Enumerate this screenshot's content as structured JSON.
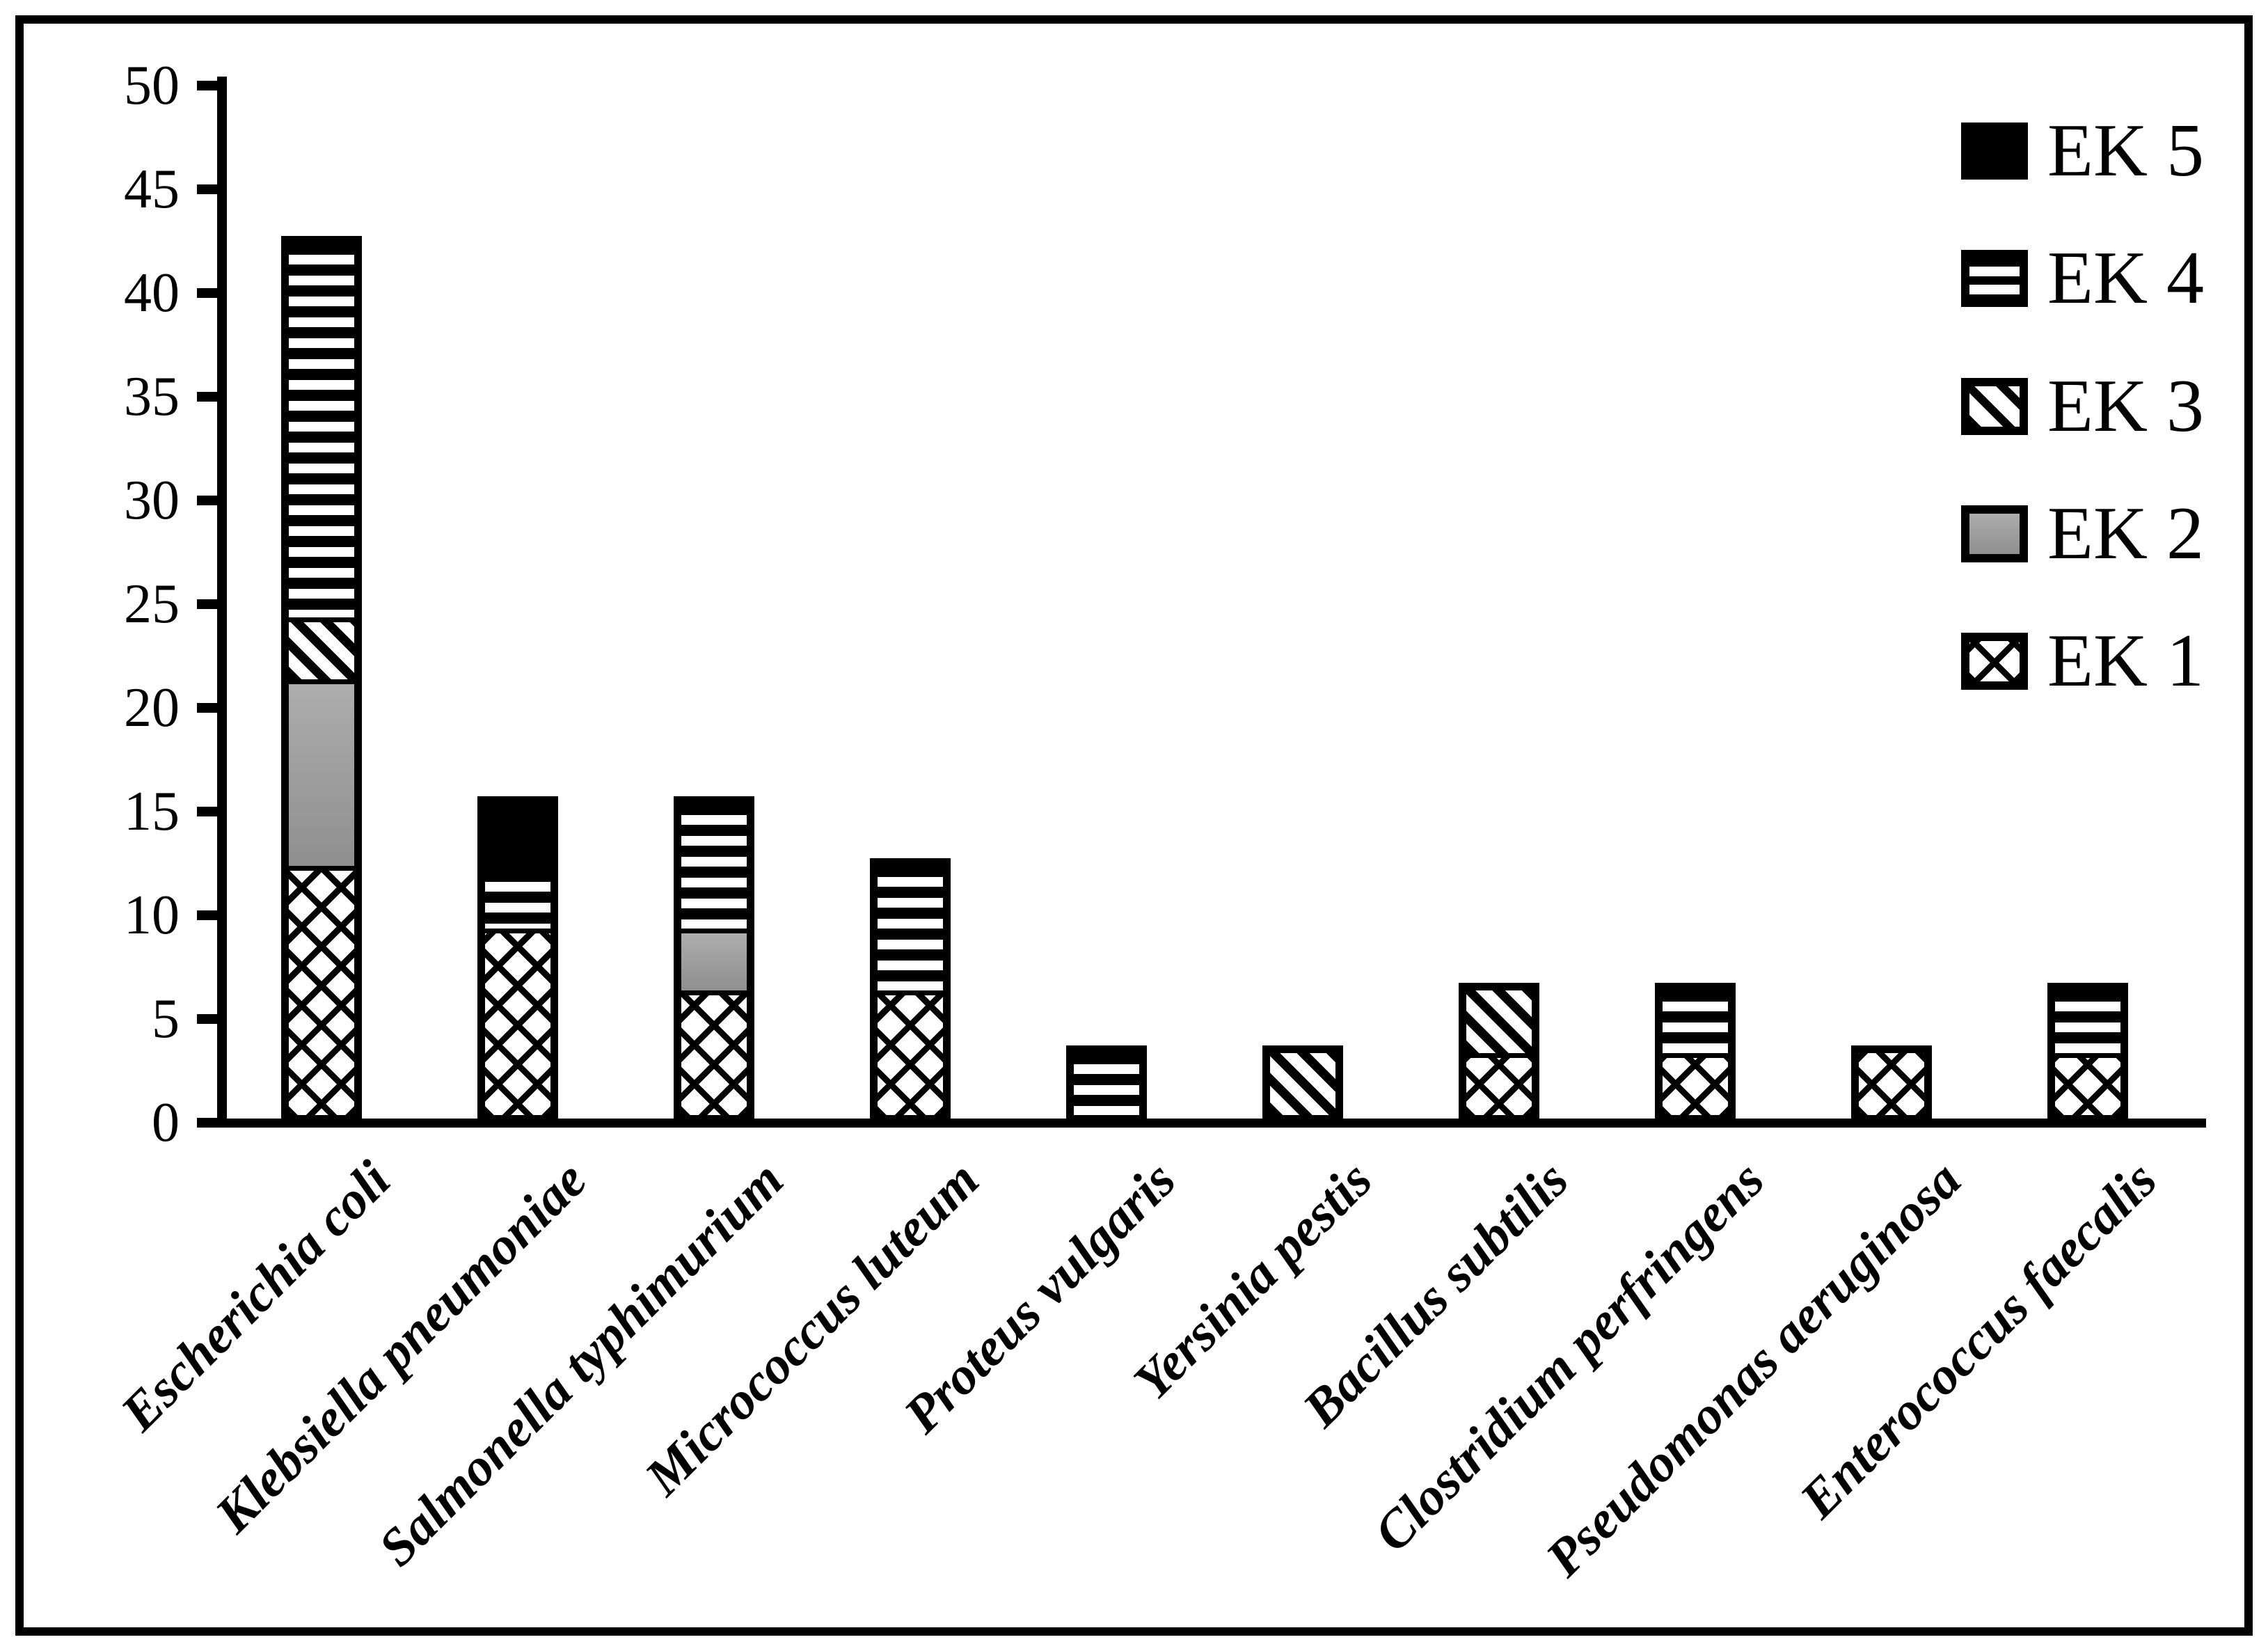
{
  "figure": {
    "background": "#ffffff",
    "border_color": "#000000",
    "accent_black": "#000000",
    "gray_fill": "#9e9e9e"
  },
  "legend": {
    "position": "top-right",
    "items": [
      {
        "label": "EK 5",
        "pattern": "solid-black"
      },
      {
        "label": "EK 4",
        "pattern": "horizontal-stripes"
      },
      {
        "label": "EK 3",
        "pattern": "diagonal-stripes"
      },
      {
        "label": "EK 2",
        "pattern": "solid-gray"
      },
      {
        "label": "EK 1",
        "pattern": "crosshatch"
      }
    ]
  },
  "chart_data": {
    "type": "bar",
    "stacked": true,
    "title": "",
    "xlabel": "",
    "ylabel": "",
    "ylim": [
      0,
      50
    ],
    "yticks": [
      0,
      5,
      10,
      15,
      20,
      25,
      30,
      35,
      40,
      45,
      50
    ],
    "grid": false,
    "categories": [
      "Escherichia coli",
      "Klebsiella pneumoniae",
      "Salmonella typhimurium",
      "Micrococcus luteum",
      "Proteus vulgaris",
      "Yersinia pestis",
      "Bacillus subtilis",
      "Clostridium perfringens",
      "Pseudomonas aeruginosa",
      "Enterococcus faecalis"
    ],
    "series": [
      {
        "name": "EK 1",
        "pattern": "crosshatch",
        "values": [
          12,
          9,
          6,
          6,
          0,
          0,
          3,
          3,
          3,
          3
        ]
      },
      {
        "name": "EK 2",
        "pattern": "solid-gray",
        "values": [
          9,
          0,
          3,
          0,
          0,
          0,
          0,
          0,
          0,
          0
        ]
      },
      {
        "name": "EK 3",
        "pattern": "diagonal-stripes",
        "values": [
          3,
          0,
          0,
          0,
          0,
          3,
          3,
          0,
          0,
          0
        ]
      },
      {
        "name": "EK 4",
        "pattern": "horizontal-stripes",
        "values": [
          18,
          3,
          6,
          6,
          3,
          0,
          0,
          3,
          0,
          3
        ]
      },
      {
        "name": "EK 5",
        "pattern": "solid-black",
        "values": [
          0,
          3,
          0,
          0,
          0,
          0,
          0,
          0,
          0,
          0
        ]
      }
    ],
    "stack_totals": [
      42,
      15,
      15,
      12,
      3,
      3,
      6,
      6,
      3,
      6
    ]
  },
  "layout_note_values_visible_only": true
}
